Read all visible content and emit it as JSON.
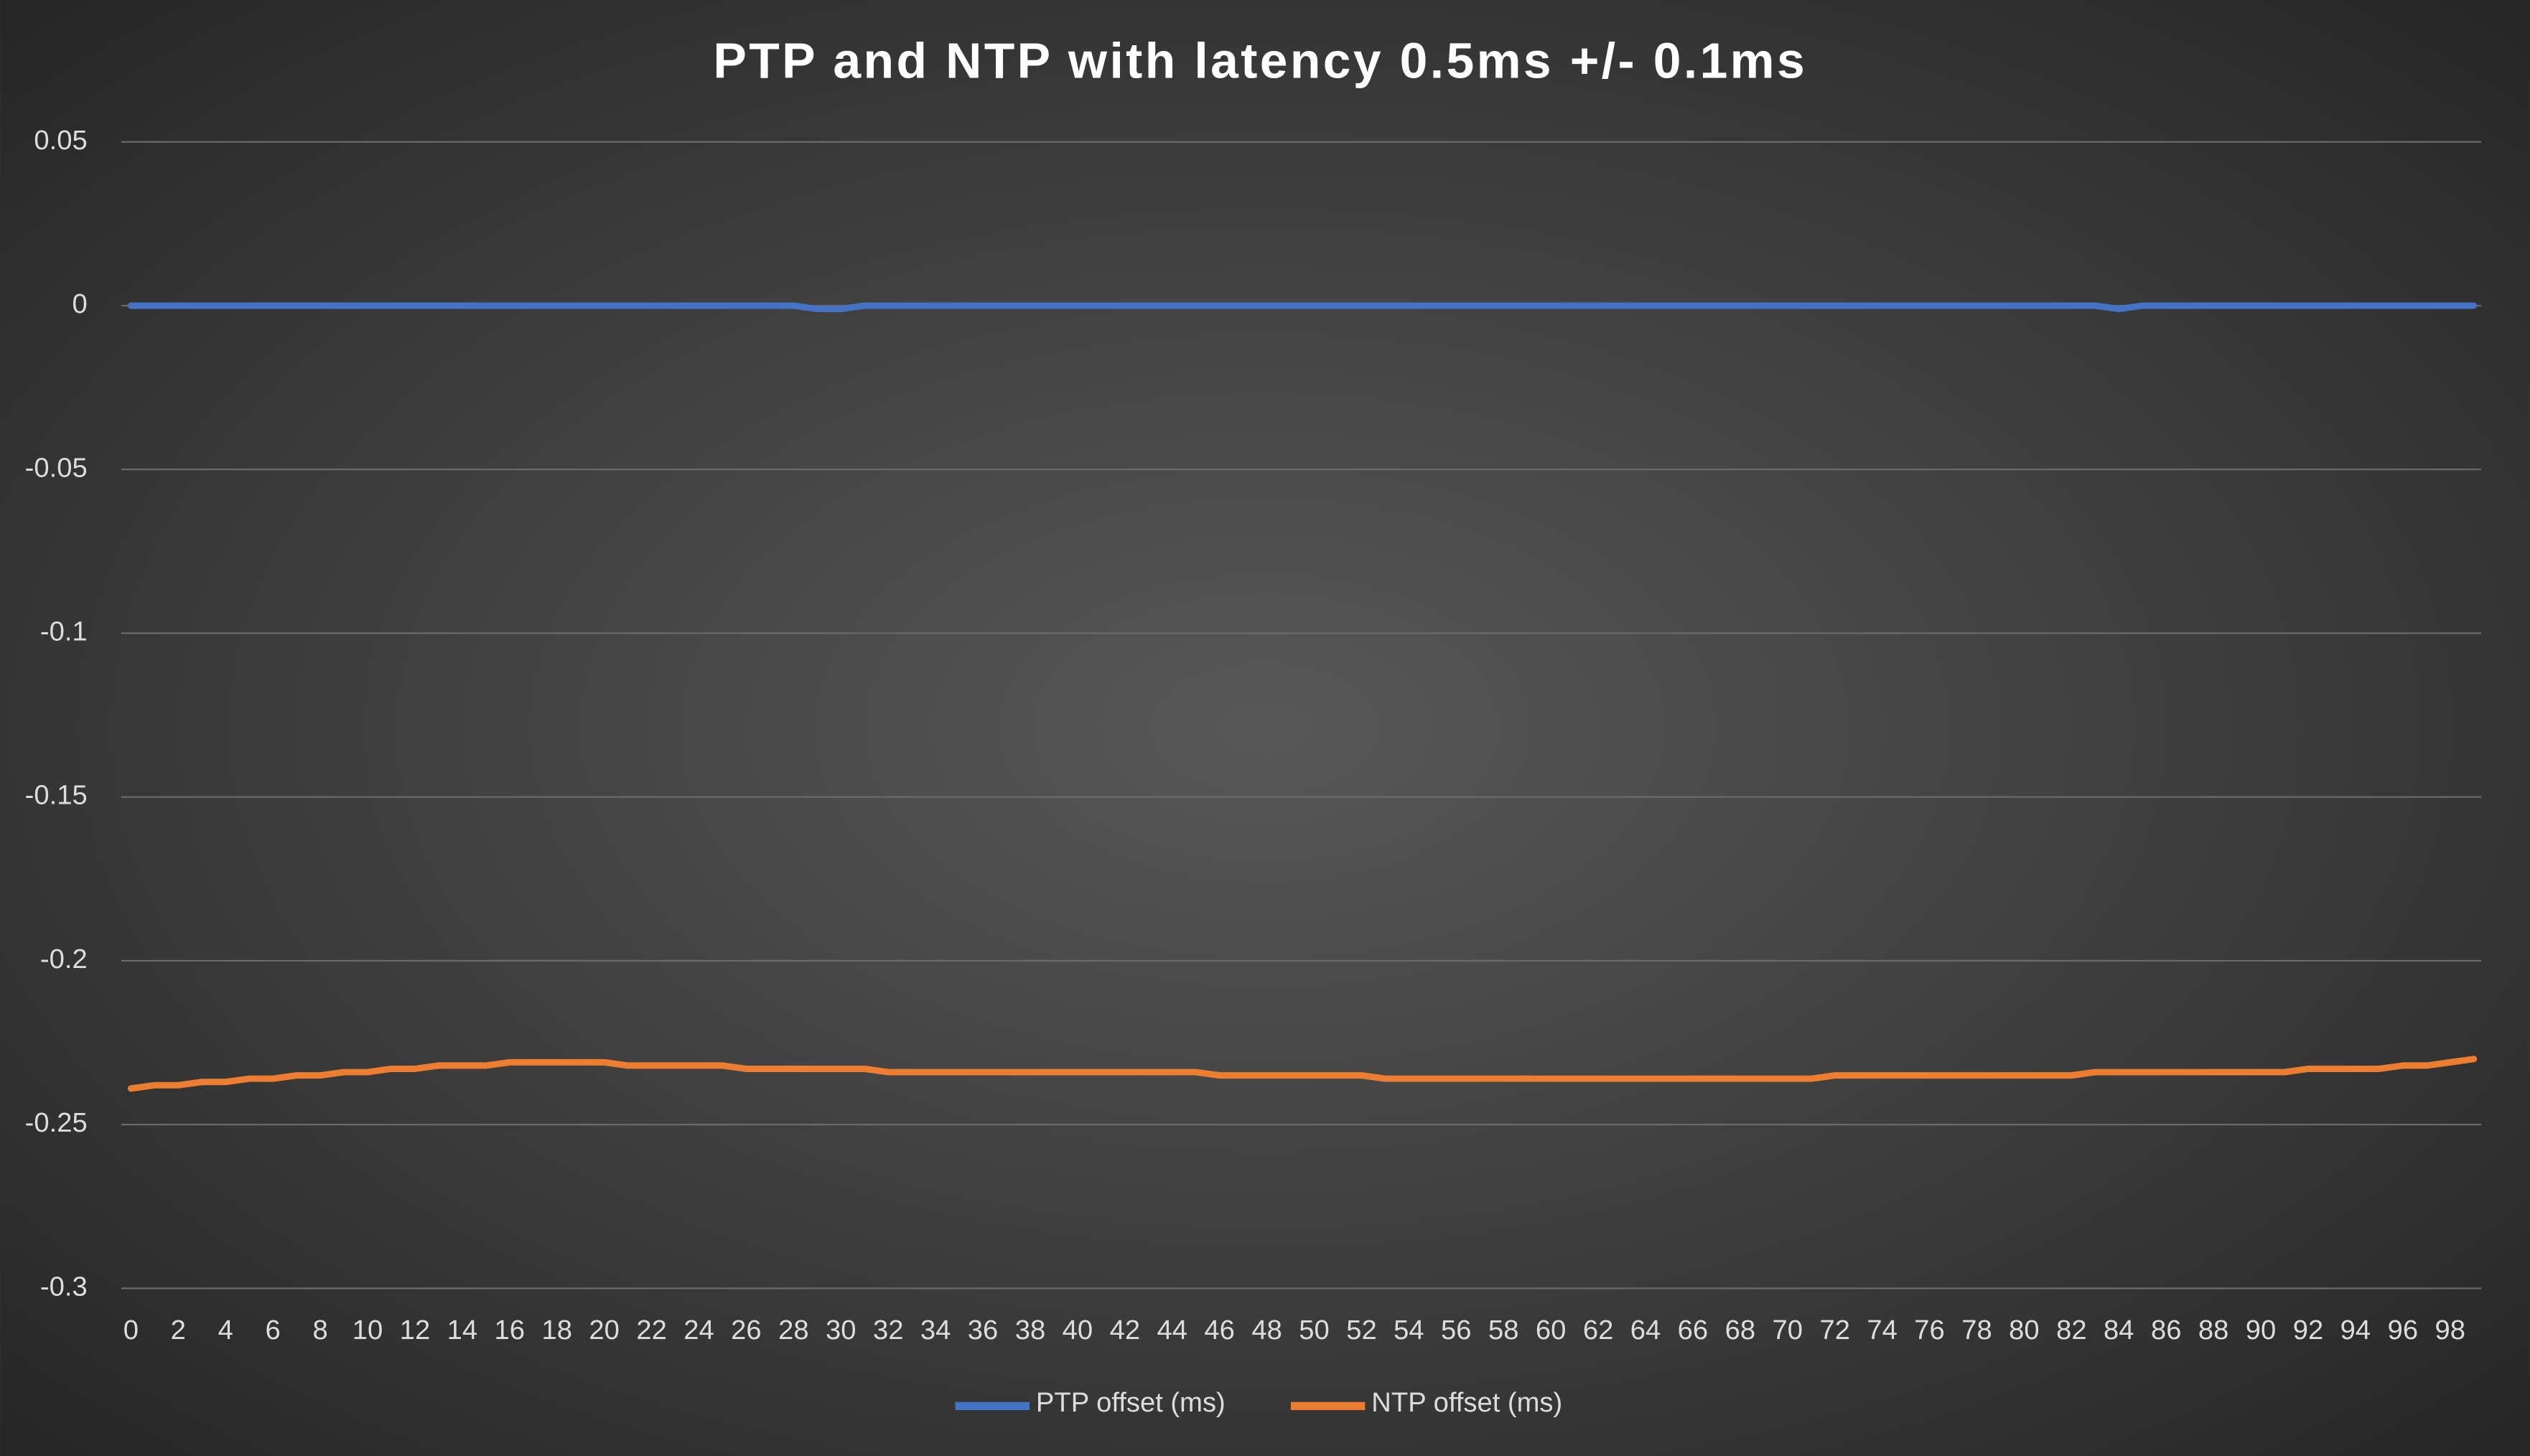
{
  "chart_data": {
    "type": "line",
    "title": "PTP and NTP with latency 0.5ms +/- 0.1ms",
    "categories": [
      0,
      null,
      2,
      null,
      4,
      null,
      6,
      null,
      8,
      null,
      10,
      null,
      12,
      null,
      14,
      null,
      16,
      null,
      18,
      null,
      20,
      null,
      22,
      null,
      24,
      null,
      26,
      null,
      28,
      null,
      30,
      null,
      32,
      null,
      34,
      null,
      36,
      null,
      38,
      null,
      40,
      null,
      42,
      null,
      44,
      null,
      46,
      null,
      48,
      null,
      50,
      null,
      52,
      null,
      54,
      null,
      56,
      null,
      58,
      null,
      60,
      null,
      62,
      null,
      64,
      null,
      66,
      null,
      68,
      null,
      70,
      null,
      72,
      null,
      74,
      null,
      76,
      null,
      78,
      null,
      80,
      null,
      82,
      null,
      84,
      null,
      86,
      null,
      88,
      null,
      90,
      null,
      92,
      null,
      94,
      null,
      96,
      null,
      98,
      null
    ],
    "series": [
      {
        "name": "PTP offset (ms)",
        "color": "#4472c4",
        "values": [
          0,
          0,
          0,
          0,
          0,
          0,
          0,
          0,
          0,
          0,
          0,
          0,
          0,
          0,
          0,
          0,
          0,
          0,
          0,
          0,
          0,
          0,
          0,
          0,
          0,
          0,
          0,
          0,
          0,
          -0.001,
          -0.001,
          0,
          0,
          0,
          0,
          0,
          0,
          0,
          0,
          0,
          0,
          0,
          0,
          0,
          0,
          0,
          0,
          0,
          0,
          0,
          0,
          0,
          0,
          0,
          0,
          0,
          0,
          0,
          0,
          0,
          0,
          0,
          0,
          0,
          0,
          0,
          0,
          0,
          0,
          0,
          0,
          0,
          0,
          0,
          0,
          0,
          0,
          0,
          0,
          0,
          0,
          0,
          0,
          0,
          -0.001,
          0,
          0,
          0,
          0,
          0,
          0,
          0,
          0,
          0,
          0,
          0,
          0,
          0,
          0,
          0
        ]
      },
      {
        "name": "NTP offset (ms)",
        "color": "#ed7d31",
        "values": [
          -0.239,
          -0.238,
          -0.238,
          -0.237,
          -0.237,
          -0.236,
          -0.236,
          -0.235,
          -0.235,
          -0.234,
          -0.234,
          -0.233,
          -0.233,
          -0.232,
          -0.232,
          -0.232,
          -0.231,
          -0.231,
          -0.231,
          -0.231,
          -0.231,
          -0.232,
          -0.232,
          -0.232,
          -0.232,
          -0.232,
          -0.233,
          -0.233,
          -0.233,
          -0.233,
          -0.233,
          -0.233,
          -0.234,
          -0.234,
          -0.234,
          -0.234,
          -0.234,
          -0.234,
          -0.234,
          -0.234,
          -0.234,
          -0.234,
          -0.234,
          -0.234,
          -0.234,
          -0.234,
          -0.235,
          -0.235,
          -0.235,
          -0.235,
          -0.235,
          -0.235,
          -0.235,
          -0.236,
          -0.236,
          -0.236,
          -0.236,
          -0.236,
          -0.236,
          -0.236,
          -0.236,
          -0.236,
          -0.236,
          -0.236,
          -0.236,
          -0.236,
          -0.236,
          -0.236,
          -0.236,
          -0.236,
          -0.236,
          -0.236,
          -0.235,
          -0.235,
          -0.235,
          -0.235,
          -0.235,
          -0.235,
          -0.235,
          -0.235,
          -0.235,
          -0.235,
          -0.235,
          -0.234,
          -0.234,
          -0.234,
          -0.234,
          -0.234,
          -0.234,
          -0.234,
          -0.234,
          -0.234,
          -0.233,
          -0.233,
          -0.233,
          -0.233,
          -0.232,
          -0.232,
          -0.231,
          -0.23
        ]
      }
    ],
    "ylim": [
      -0.3,
      0.05
    ],
    "yticks": [
      0.05,
      0,
      -0.05,
      -0.1,
      -0.15,
      -0.2,
      -0.25,
      -0.3
    ],
    "grid": true,
    "legend": "bottom"
  }
}
